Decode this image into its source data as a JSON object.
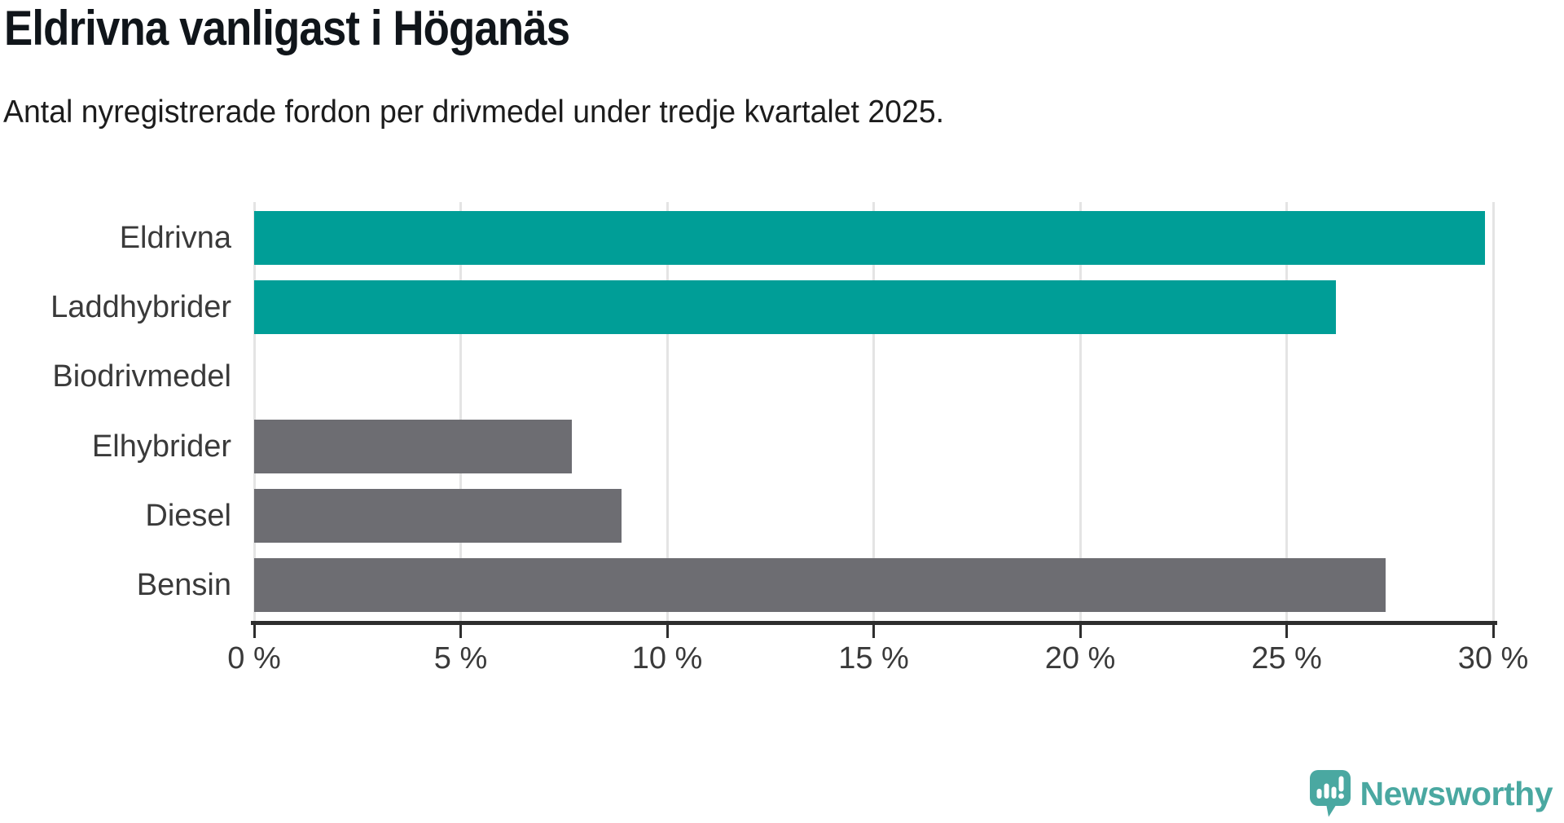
{
  "header": {
    "title": "Eldrivna vanligast i Höganäs",
    "subtitle": "Antal nyregistrerade fordon per drivmedel under tredje kvartalet 2025."
  },
  "chart_data": {
    "type": "bar",
    "orientation": "horizontal",
    "title": "Eldrivna vanligast i Höganäs",
    "subtitle": "Antal nyregistrerade fordon per drivmedel under tredje kvartalet 2025.",
    "categories": [
      "Eldrivna",
      "Laddhybrider",
      "Biodrivmedel",
      "Elhybrider",
      "Diesel",
      "Bensin"
    ],
    "values": [
      29.8,
      26.2,
      0,
      7.7,
      8.9,
      27.4
    ],
    "unit": "%",
    "xlim": [
      0,
      30
    ],
    "x_ticks": [
      0,
      5,
      10,
      15,
      20,
      25,
      30
    ],
    "x_tick_labels": [
      "0 %",
      "5 %",
      "10 %",
      "15 %",
      "20 %",
      "25 %",
      "30 %"
    ],
    "bar_colors": [
      "#009e97",
      "#009e97",
      "#6d6d72",
      "#6d6d72",
      "#6d6d72",
      "#6d6d72"
    ],
    "highlight_color": "#009e97",
    "default_color": "#6d6d72",
    "grid": "vertical-only",
    "gridline_color": "#e4e4e4",
    "axis_color": "#2e2e2e",
    "legend": "none"
  },
  "footer": {
    "brand": "Newsworthy",
    "brand_color": "#4aa8a1",
    "logo_icon": "speech-bubble-with-bar-chart-and-exclamation"
  }
}
